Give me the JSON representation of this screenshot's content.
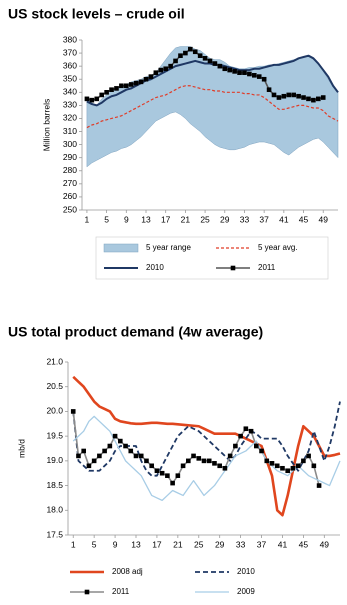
{
  "chart_data": [
    {
      "type": "line",
      "title": "US stock levels – crude oil",
      "ylabel": "Million barrels",
      "x": [
        1,
        2,
        3,
        4,
        5,
        6,
        7,
        8,
        9,
        10,
        11,
        12,
        13,
        14,
        15,
        16,
        17,
        18,
        19,
        20,
        21,
        22,
        23,
        24,
        25,
        26,
        27,
        28,
        29,
        30,
        31,
        32,
        33,
        34,
        35,
        36,
        37,
        38,
        39,
        40,
        41,
        42,
        43,
        44,
        45,
        46,
        47,
        48,
        49,
        50,
        51,
        52
      ],
      "xlim": [
        0,
        52
      ],
      "xticks": [
        1,
        5,
        9,
        13,
        17,
        21,
        25,
        29,
        33,
        37,
        41,
        45,
        49
      ],
      "ylim": [
        250,
        380
      ],
      "yticks": [
        250,
        260,
        270,
        280,
        290,
        300,
        310,
        320,
        330,
        340,
        350,
        360,
        370,
        380
      ],
      "grid": false,
      "legend": "bottom",
      "series": [
        {
          "name": "5 year range",
          "color": "#a9c8de",
          "style": "band",
          "upper": [
            335,
            332,
            330,
            335,
            338,
            341,
            343,
            345,
            346,
            348,
            349,
            350,
            352,
            353,
            355,
            360,
            365,
            370,
            374,
            375,
            375,
            375,
            373,
            372,
            369,
            366,
            365,
            365,
            363,
            360,
            359,
            358,
            358,
            359,
            359,
            360,
            360,
            361,
            361,
            362,
            363,
            364,
            365,
            366,
            367,
            368,
            365,
            362,
            356,
            350,
            344,
            340
          ],
          "lower": [
            283,
            286,
            288,
            290,
            292,
            294,
            295,
            297,
            298,
            300,
            303,
            306,
            310,
            314,
            318,
            320,
            322,
            324,
            325,
            323,
            320,
            316,
            313,
            310,
            306,
            303,
            300,
            298,
            297,
            296,
            296,
            297,
            298,
            300,
            301,
            302,
            302,
            301,
            300,
            297,
            294,
            292,
            295,
            298,
            300,
            302,
            304,
            305,
            302,
            298,
            294,
            290
          ]
        },
        {
          "name": "5 year avg.",
          "color": "#e03c28",
          "style": "dashed",
          "values": [
            313,
            315,
            316,
            318,
            319,
            320,
            321,
            322,
            324,
            326,
            328,
            330,
            332,
            334,
            336,
            337,
            338,
            340,
            342,
            344,
            345,
            345,
            344,
            343,
            342,
            342,
            341,
            341,
            340,
            340,
            340,
            340,
            339,
            339,
            338,
            338,
            336,
            333,
            330,
            327,
            327,
            328,
            329,
            330,
            330,
            329,
            328,
            328,
            326,
            322,
            320,
            318
          ]
        },
        {
          "name": "2010",
          "color": "#1f3864",
          "style": "line",
          "values": [
            333,
            331,
            330,
            332,
            335,
            337,
            338,
            340,
            342,
            343,
            345,
            347,
            349,
            350,
            352,
            354,
            356,
            358,
            360,
            361,
            362,
            363,
            364,
            363,
            362,
            362,
            361,
            361,
            360,
            359,
            358,
            357,
            357,
            357,
            358,
            358,
            359,
            360,
            361,
            361,
            362,
            363,
            364,
            366,
            367,
            368,
            366,
            362,
            357,
            352,
            345,
            340
          ]
        },
        {
          "name": "2011",
          "color": "#555555",
          "marker_color": "#000000",
          "style": "line-square",
          "values": [
            335,
            334,
            335,
            338,
            340,
            342,
            343,
            345,
            345,
            346,
            347,
            348,
            350,
            352,
            355,
            357,
            358,
            360,
            364,
            368,
            370,
            373,
            371,
            368,
            366,
            364,
            362,
            360,
            358,
            357,
            356,
            355,
            355,
            354,
            353,
            352,
            350,
            342,
            338,
            336,
            337,
            338,
            338,
            337,
            336,
            335,
            334,
            335,
            336,
            null,
            null,
            null
          ]
        }
      ]
    },
    {
      "type": "line",
      "title": "US total product demand (4w average)",
      "ylabel": "mb/d",
      "x": [
        1,
        2,
        3,
        4,
        5,
        6,
        7,
        8,
        9,
        10,
        11,
        12,
        13,
        14,
        15,
        16,
        17,
        18,
        19,
        20,
        21,
        22,
        23,
        24,
        25,
        26,
        27,
        28,
        29,
        30,
        31,
        32,
        33,
        34,
        35,
        36,
        37,
        38,
        39,
        40,
        41,
        42,
        43,
        44,
        45,
        46,
        47,
        48,
        49,
        50,
        51,
        52
      ],
      "xlim": [
        0,
        52
      ],
      "xticks": [
        1,
        5,
        9,
        13,
        17,
        21,
        25,
        29,
        33,
        37,
        41,
        45,
        49
      ],
      "ylim": [
        17.5,
        21
      ],
      "yticks": [
        17.5,
        {
          "value": 18,
          "label": "18.0"
        },
        18.5,
        {
          "value": 19,
          "label": "19.0"
        },
        19.5,
        {
          "value": 20,
          "label": "20.0"
        },
        20.5,
        {
          "value": 21,
          "label": "21.0"
        }
      ],
      "grid": false,
      "legend": "bottom",
      "series": [
        {
          "name": "2008 adj",
          "color": "#e0461e",
          "style": "thick",
          "values": [
            20.7,
            20.6,
            20.5,
            20.35,
            20.2,
            20.1,
            20.05,
            20.0,
            19.85,
            19.8,
            19.78,
            19.76,
            19.75,
            19.75,
            19.76,
            19.77,
            19.77,
            19.76,
            19.75,
            19.75,
            19.74,
            19.73,
            19.72,
            19.71,
            19.7,
            19.65,
            19.6,
            19.55,
            19.55,
            19.55,
            19.55,
            19.55,
            19.5,
            19.45,
            19.4,
            19.35,
            19.3,
            19.0,
            18.7,
            18.0,
            17.9,
            18.3,
            18.8,
            19.3,
            19.7,
            19.6,
            19.5,
            19.3,
            19.1,
            19.1,
            19.12,
            19.15
          ]
        },
        {
          "name": "2010",
          "color": "#1f3864",
          "style": "dashed",
          "values": [
            20.0,
            19.0,
            18.9,
            18.8,
            18.8,
            18.8,
            18.9,
            19.0,
            19.2,
            19.3,
            19.3,
            19.3,
            19.3,
            19.0,
            18.8,
            18.7,
            18.7,
            18.9,
            19.1,
            19.3,
            19.5,
            19.6,
            19.7,
            19.65,
            19.6,
            19.5,
            19.4,
            19.3,
            19.2,
            19.1,
            19.0,
            19.1,
            19.3,
            19.45,
            19.6,
            19.55,
            19.45,
            19.45,
            19.45,
            19.45,
            19.3,
            19.1,
            18.95,
            18.8,
            19.0,
            19.2,
            19.6,
            19.3,
            19.0,
            19.3,
            19.7,
            20.2
          ]
        },
        {
          "name": "2011",
          "color": "#8a8a8a",
          "marker_color": "#000000",
          "style": "line-square",
          "values": [
            20.0,
            19.1,
            19.2,
            18.9,
            19.0,
            19.1,
            19.2,
            19.3,
            19.5,
            19.4,
            19.3,
            19.2,
            19.1,
            19.1,
            19.0,
            18.9,
            18.8,
            18.75,
            18.7,
            18.55,
            18.7,
            18.9,
            19.0,
            19.1,
            19.05,
            19.0,
            19.0,
            18.95,
            18.9,
            18.85,
            19.1,
            19.3,
            19.5,
            19.65,
            19.6,
            19.3,
            19.2,
            19.0,
            18.95,
            18.9,
            18.85,
            18.8,
            18.85,
            18.9,
            19.0,
            19.1,
            18.9,
            18.5,
            null,
            null,
            null,
            null
          ]
        },
        {
          "name": "2009",
          "color": "#a8cde6",
          "style": "line",
          "values": [
            19.4,
            19.5,
            19.6,
            19.8,
            19.9,
            19.8,
            19.7,
            19.6,
            19.4,
            19.2,
            19.0,
            18.9,
            18.8,
            18.7,
            18.5,
            18.3,
            18.25,
            18.2,
            18.3,
            18.4,
            18.35,
            18.3,
            18.45,
            18.6,
            18.45,
            18.3,
            18.4,
            18.5,
            18.65,
            18.8,
            18.95,
            19.1,
            19.15,
            19.2,
            19.3,
            19.4,
            19.2,
            19.0,
            18.9,
            18.8,
            18.75,
            18.7,
            18.8,
            18.9,
            18.8,
            18.7,
            18.65,
            18.6,
            18.55,
            18.5,
            18.75,
            19.0
          ]
        }
      ]
    }
  ]
}
